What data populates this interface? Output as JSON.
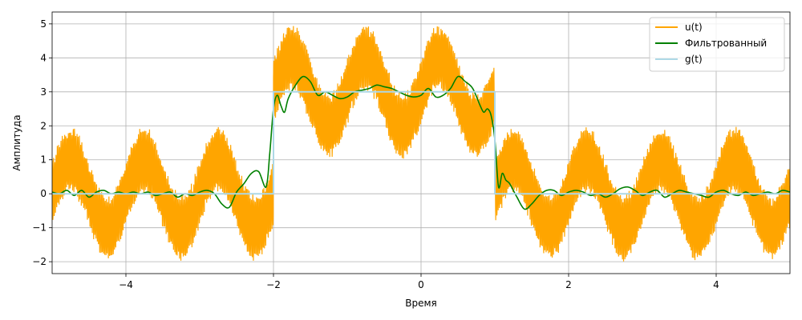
{
  "chart_data": {
    "type": "line",
    "title": "",
    "xlabel": "Время",
    "ylabel": "Амплитуда",
    "xlim": [
      -5,
      5
    ],
    "ylim": [
      -2.35,
      5.35
    ],
    "xticks": [
      -4,
      -2,
      0,
      2,
      4
    ],
    "yticks": [
      -2,
      -1,
      0,
      1,
      2,
      3,
      4,
      5
    ],
    "xtick_labels": [
      "−4",
      "−2",
      "0",
      "2",
      "4"
    ],
    "ytick_labels": [
      "−2",
      "−1",
      "0",
      "1",
      "2",
      "3",
      "4",
      "5"
    ],
    "grid": true,
    "legend_position": "top-right",
    "colors": {
      "u": "#ffa500",
      "filtered": "#008000",
      "g": "#add8e6",
      "grid": "#b0b0b0"
    },
    "series": [
      {
        "name": "u(t)",
        "description_of_shape": "rect pulse g(t) plus sin(2*pi*t) plus high-frequency noise",
        "pulse": {
          "start": -2,
          "end": 1,
          "level": 3
        },
        "slow_amplitude": 1,
        "slow_frequency_hz": 1,
        "fast_amplitude": 1,
        "fast_frequency_hz": 60
      },
      {
        "name": "Фильтрованный",
        "x": [
          -5.0,
          -4.9,
          -4.8,
          -4.7,
          -4.6,
          -4.5,
          -4.4,
          -4.3,
          -4.2,
          -4.1,
          -4.0,
          -3.9,
          -3.8,
          -3.7,
          -3.6,
          -3.5,
          -3.4,
          -3.3,
          -3.2,
          -3.1,
          -3.0,
          -2.9,
          -2.8,
          -2.7,
          -2.6,
          -2.5,
          -2.4,
          -2.3,
          -2.2,
          -2.1,
          -2.05,
          -2.0,
          -1.95,
          -1.9,
          -1.85,
          -1.8,
          -1.7,
          -1.6,
          -1.5,
          -1.4,
          -1.3,
          -1.2,
          -1.1,
          -1.0,
          -0.9,
          -0.8,
          -0.7,
          -0.6,
          -0.5,
          -0.4,
          -0.3,
          -0.2,
          -0.1,
          0.0,
          0.1,
          0.2,
          0.3,
          0.4,
          0.5,
          0.6,
          0.7,
          0.8,
          0.85,
          0.9,
          0.95,
          1.0,
          1.05,
          1.1,
          1.15,
          1.2,
          1.3,
          1.4,
          1.5,
          1.6,
          1.7,
          1.8,
          1.9,
          2.0,
          2.1,
          2.2,
          2.3,
          2.4,
          2.5,
          2.6,
          2.7,
          2.8,
          2.9,
          3.0,
          3.1,
          3.2,
          3.3,
          3.4,
          3.5,
          3.6,
          3.7,
          3.8,
          3.9,
          4.0,
          4.1,
          4.2,
          4.3,
          4.4,
          4.5,
          4.6,
          4.7,
          4.8,
          4.9,
          5.0
        ],
        "y": [
          0.05,
          0.0,
          0.1,
          -0.05,
          0.1,
          -0.1,
          0.05,
          0.1,
          0.0,
          0.05,
          0.0,
          0.05,
          0.0,
          0.05,
          -0.05,
          0.0,
          0.05,
          -0.1,
          0.0,
          -0.05,
          0.05,
          0.1,
          0.0,
          -0.3,
          -0.4,
          0.05,
          0.3,
          0.6,
          0.65,
          0.2,
          1.2,
          2.5,
          2.9,
          2.6,
          2.4,
          2.8,
          3.2,
          3.45,
          3.3,
          2.9,
          3.0,
          2.9,
          2.8,
          2.85,
          3.0,
          3.05,
          3.1,
          3.2,
          3.15,
          3.1,
          3.0,
          2.9,
          2.85,
          2.9,
          3.1,
          2.85,
          2.9,
          3.1,
          3.45,
          3.3,
          3.1,
          2.6,
          2.4,
          2.5,
          2.3,
          1.6,
          0.2,
          0.6,
          0.4,
          0.3,
          -0.1,
          -0.45,
          -0.3,
          -0.05,
          0.1,
          0.1,
          -0.05,
          0.05,
          0.1,
          0.05,
          -0.05,
          0.0,
          -0.1,
          0.0,
          0.15,
          0.2,
          0.1,
          -0.05,
          0.05,
          0.1,
          -0.1,
          0.0,
          0.1,
          0.05,
          0.0,
          -0.05,
          -0.1,
          0.05,
          0.1,
          0.0,
          -0.05,
          0.05,
          -0.05,
          0.0,
          0.05,
          0.0,
          0.1,
          0.05
        ]
      },
      {
        "name": "g(t)",
        "x": [
          -5,
          -2,
          -2,
          1,
          1,
          5
        ],
        "y": [
          0,
          0,
          3,
          3,
          0,
          0
        ]
      }
    ]
  }
}
